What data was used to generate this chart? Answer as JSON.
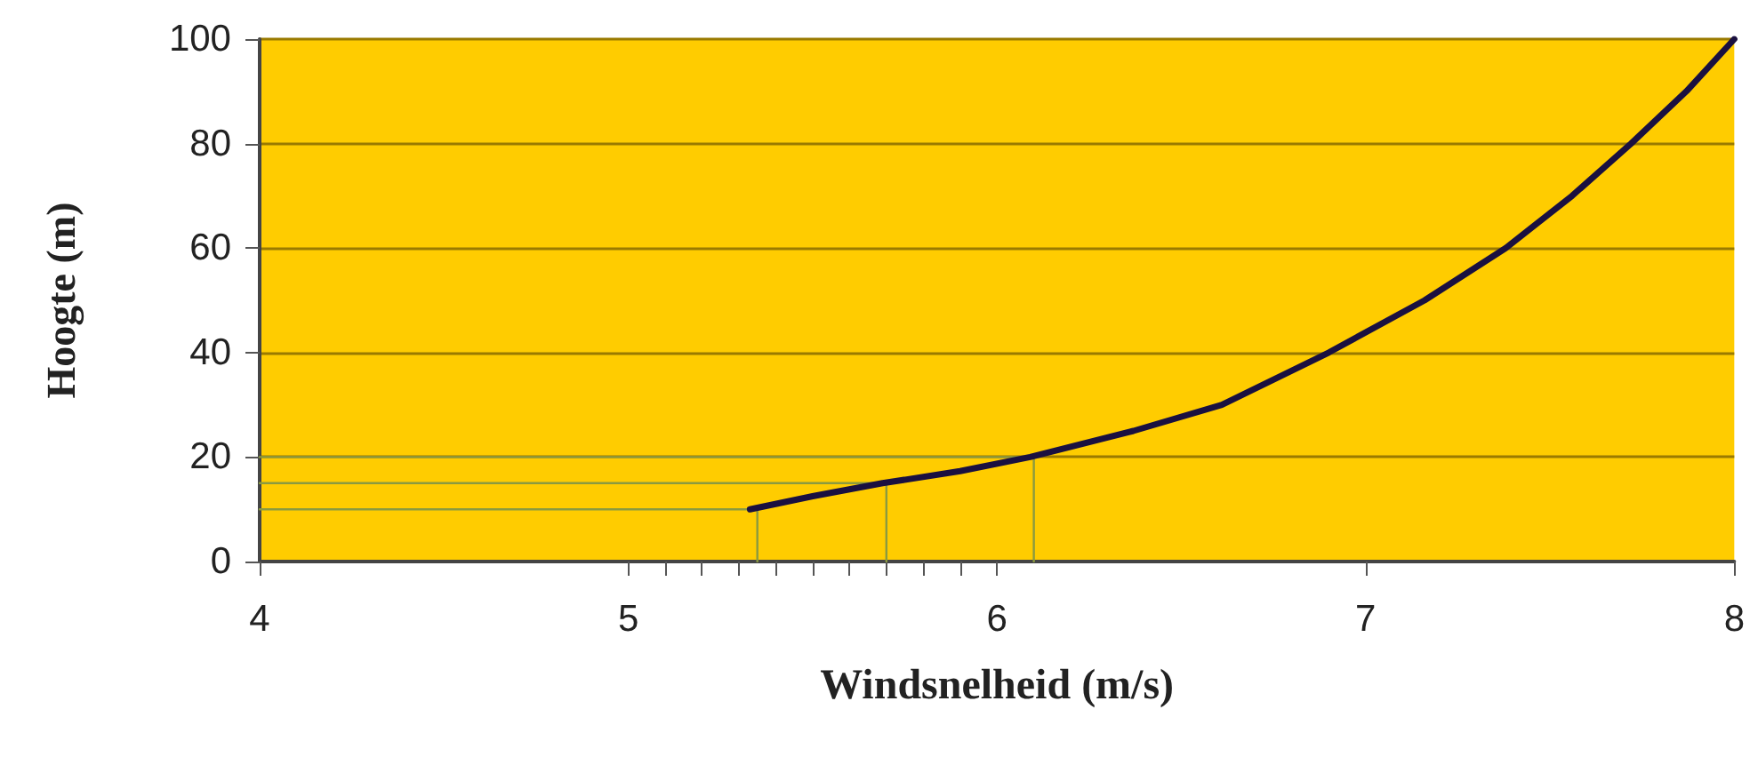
{
  "chart_data": {
    "type": "line",
    "xlabel": "Windsnelheid (m/s)",
    "ylabel": "Hoogte (m)",
    "xlim": [
      4,
      8
    ],
    "xticks": [
      4,
      5,
      {
        "value": 5.1,
        "label": null
      },
      {
        "value": 5.2,
        "label": null
      },
      {
        "value": 5.3,
        "label": null
      },
      {
        "value": 5.4,
        "label": null
      },
      {
        "value": 5.5,
        "label": null
      },
      {
        "value": 5.6,
        "label": null
      },
      {
        "value": 5.7,
        "label": null
      },
      {
        "value": 5.8,
        "label": null
      },
      {
        "value": 5.9,
        "label": null
      },
      6,
      7,
      8
    ],
    "ylim": [
      0,
      100
    ],
    "yticks": [
      0,
      20,
      40,
      60,
      80,
      100
    ],
    "grid": "y",
    "marker": "none",
    "line_style": "solid",
    "series": [
      {
        "color": "#1a1040",
        "x": [
          5.33,
          5.5,
          5.69,
          5.9,
          6.09,
          6.37,
          6.61,
          6.9,
          7.16,
          7.38,
          7.56,
          7.72,
          7.87,
          8
        ],
        "values": [
          10,
          12.5,
          15,
          17.3,
          20,
          25,
          30,
          40,
          50,
          60,
          70,
          80,
          90,
          100
        ]
      },
      {
        "color": "#8a9a40",
        "x": [
          4,
          5.35,
          5.35
        ],
        "values": [
          10,
          10,
          0
        ]
      },
      {
        "color": "#8a9a40",
        "x": [
          4,
          5.7,
          5.7
        ],
        "values": [
          15,
          15,
          0
        ]
      },
      {
        "color": "#8a9a40",
        "x": [
          4,
          6.1,
          6.1
        ],
        "values": [
          20,
          20,
          0
        ]
      }
    ]
  }
}
